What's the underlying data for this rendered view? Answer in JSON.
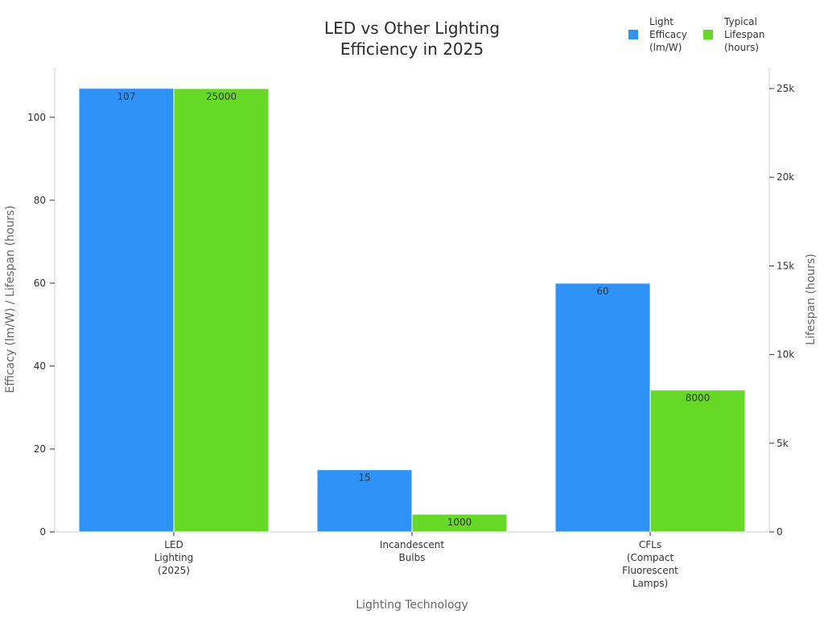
{
  "chart_data": {
    "type": "bar",
    "title_lines": [
      "LED vs Other Lighting",
      "Efficiency in 2025"
    ],
    "xlabel": "Lighting Technology",
    "ylabel_left": "Efficacy (lm/W) / Lifespan (hours)",
    "ylabel_right": "Lifespan (hours)",
    "categories": [
      [
        "LED",
        "Lighting",
        "(2025)"
      ],
      [
        "Incandescent",
        "Bulbs"
      ],
      [
        "CFLs",
        "(Compact",
        "Fluorescent",
        "Lamps)"
      ]
    ],
    "series": [
      {
        "name_lines": [
          "Light",
          "Efficacy",
          "(lm/W)"
        ],
        "axis": "left",
        "color": "#2e92f7",
        "values": [
          107,
          15,
          60
        ],
        "labels": [
          "107",
          "15",
          "60"
        ]
      },
      {
        "name_lines": [
          "Typical",
          "Lifespan",
          "(hours)"
        ],
        "axis": "right",
        "color": "#66d926",
        "values": [
          25000,
          1000,
          8000
        ],
        "labels": [
          "25000",
          "1000",
          "8000"
        ]
      }
    ],
    "ylim_left": [
      0,
      112
    ],
    "yticks_left": [
      "0",
      "20",
      "40",
      "60",
      "80",
      "100"
    ],
    "ylim_right": [
      0,
      26180
    ],
    "yticks_right": [
      "0",
      "5k",
      "10k",
      "15k",
      "20k",
      "25k"
    ],
    "legend_position": "top-right",
    "grid": false
  }
}
